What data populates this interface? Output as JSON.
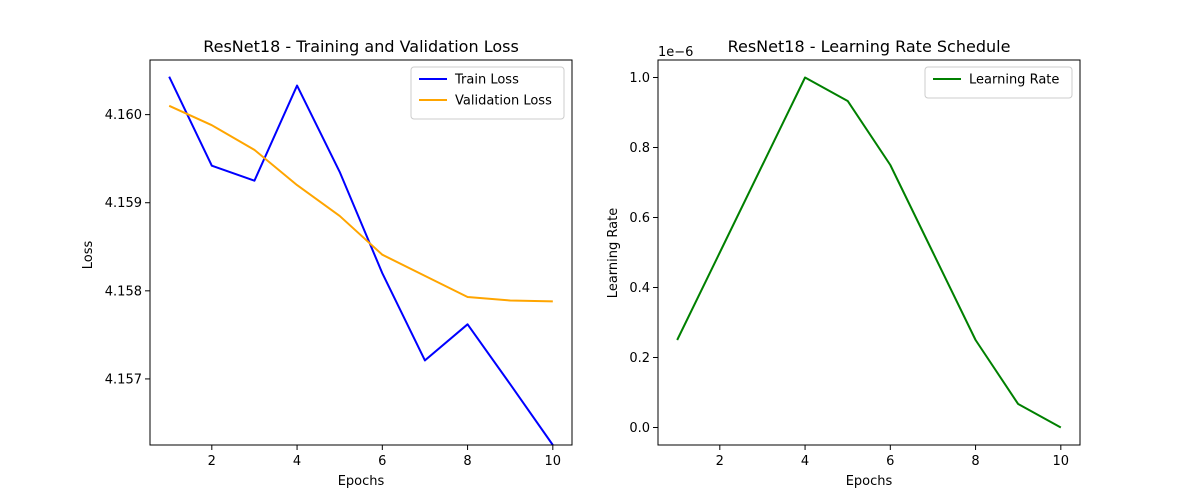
{
  "chart_data": [
    {
      "type": "line",
      "title": "ResNet18 - Training and Validation Loss",
      "xlabel": "Epochs",
      "ylabel": "Loss",
      "xlim": [
        0.55,
        10.45
      ],
      "ylim": [
        4.15625,
        4.16062
      ],
      "xticks": [
        2,
        4,
        6,
        8,
        10
      ],
      "yticks": [
        4.157,
        4.158,
        4.159,
        4.16
      ],
      "ytick_labels": [
        "4.157",
        "4.158",
        "4.159",
        "4.160"
      ],
      "legend_position": "upper right",
      "grid": false,
      "x": [
        1,
        2,
        3,
        4,
        5,
        6,
        7,
        8,
        9,
        10
      ],
      "series": [
        {
          "name": "Train Loss",
          "color": "#0000ff",
          "values": [
            4.16043,
            4.15942,
            4.15925,
            4.16033,
            4.15935,
            4.1582,
            4.15721,
            4.15762,
            4.15694,
            4.15625
          ]
        },
        {
          "name": "Validation Loss",
          "color": "#ffa500",
          "values": [
            4.1601,
            4.15988,
            4.1596,
            4.1592,
            4.15885,
            4.15841,
            4.15817,
            4.15793,
            4.15789,
            4.15788
          ]
        }
      ]
    },
    {
      "type": "line",
      "title": "ResNet18 - Learning Rate Schedule",
      "xlabel": "Epochs",
      "ylabel": "Learning Rate",
      "offset_label": "1e−6",
      "xlim": [
        0.55,
        10.45
      ],
      "ylim": [
        -0.05,
        1.05
      ],
      "xticks": [
        2,
        4,
        6,
        8,
        10
      ],
      "yticks": [
        0.0,
        0.2,
        0.4,
        0.6,
        0.8,
        1.0
      ],
      "ytick_labels": [
        "0.0",
        "0.2",
        "0.4",
        "0.6",
        "0.8",
        "1.0"
      ],
      "legend_position": "upper right",
      "grid": false,
      "x": [
        1,
        2,
        3,
        4,
        5,
        6,
        7,
        8,
        9,
        10
      ],
      "series": [
        {
          "name": "Learning Rate",
          "color": "#008000",
          "values": [
            0.25,
            0.5,
            0.75,
            1.0,
            0.933,
            0.75,
            0.5,
            0.25,
            0.067,
            0.0
          ]
        }
      ]
    }
  ]
}
